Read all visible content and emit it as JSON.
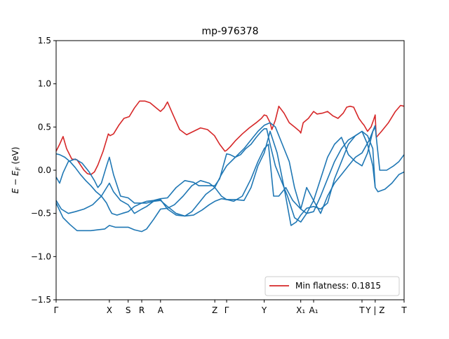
{
  "chart_data": {
    "type": "line",
    "title": "mp-976378",
    "ylabel_main": "E − E",
    "ylabel_sub": "F",
    "ylabel_unit": " (eV)",
    "ylim": [
      -1.5,
      1.5
    ],
    "xlim": [
      0,
      10.0
    ],
    "yticks": [
      {
        "value": 1.5,
        "label": "1.5"
      },
      {
        "value": 1.0,
        "label": "1.0"
      },
      {
        "value": 0.5,
        "label": "0.5"
      },
      {
        "value": 0.0,
        "label": "0.0"
      },
      {
        "value": -0.5,
        "label": "−0.5"
      },
      {
        "value": -1.0,
        "label": "−1.0"
      },
      {
        "value": -1.5,
        "label": "−1.5"
      }
    ],
    "xticks": [
      {
        "value": 0.0,
        "label": "Γ"
      },
      {
        "value": 1.53,
        "label": "X"
      },
      {
        "value": 2.07,
        "label": "S"
      },
      {
        "value": 2.46,
        "label": "R"
      },
      {
        "value": 3.0,
        "label": "A"
      },
      {
        "value": 4.56,
        "label": "Z"
      },
      {
        "value": 4.9,
        "label": "Γ"
      },
      {
        "value": 5.98,
        "label": "Y"
      },
      {
        "value": 7.03,
        "label": "X₁"
      },
      {
        "value": 7.4,
        "label": "A₁"
      },
      {
        "value": 8.79,
        "label": "T"
      },
      {
        "value": 9.17,
        "label": "Y | Z"
      },
      {
        "value": 10.0,
        "label": "T"
      }
    ],
    "legend": {
      "label": "Min flatness: 0.1815",
      "position": "lower-right"
    },
    "series": [
      {
        "color": "#d62728",
        "x": [
          0,
          0.1,
          0.2,
          0.3,
          0.45,
          0.6,
          0.8,
          0.9,
          1.0,
          1.1,
          1.2,
          1.35,
          1.5,
          1.55,
          1.65,
          1.8,
          1.95,
          2.1,
          2.25,
          2.4,
          2.46,
          2.55,
          2.7,
          2.85,
          3.0,
          3.1,
          3.2,
          3.35,
          3.55,
          3.75,
          3.95,
          4.15,
          4.35,
          4.55,
          4.7,
          4.85,
          4.9,
          5.0,
          5.15,
          5.35,
          5.55,
          5.75,
          5.9,
          5.98,
          6.05,
          6.15,
          6.2,
          6.3,
          6.4,
          6.55,
          6.7,
          6.85,
          7.0,
          7.03,
          7.1,
          7.25,
          7.4,
          7.5,
          7.65,
          7.8,
          7.95,
          8.1,
          8.25,
          8.35,
          8.45,
          8.55,
          8.7,
          8.79,
          8.85,
          8.95,
          9.05,
          9.12,
          9.17,
          9.2,
          9.35,
          9.55,
          9.75,
          9.9,
          10.0
        ],
        "y": [
          0.22,
          0.3,
          0.39,
          0.25,
          0.13,
          0.12,
          0.0,
          -0.04,
          -0.05,
          -0.02,
          0.06,
          0.22,
          0.42,
          0.4,
          0.42,
          0.52,
          0.6,
          0.62,
          0.72,
          0.8,
          0.8,
          0.8,
          0.78,
          0.73,
          0.68,
          0.72,
          0.79,
          0.65,
          0.47,
          0.41,
          0.45,
          0.49,
          0.47,
          0.4,
          0.3,
          0.22,
          0.23,
          0.27,
          0.34,
          0.42,
          0.49,
          0.55,
          0.6,
          0.64,
          0.63,
          0.55,
          0.47,
          0.58,
          0.74,
          0.66,
          0.55,
          0.5,
          0.45,
          0.43,
          0.55,
          0.6,
          0.68,
          0.65,
          0.66,
          0.68,
          0.63,
          0.6,
          0.66,
          0.73,
          0.74,
          0.73,
          0.6,
          0.55,
          0.52,
          0.45,
          0.5,
          0.58,
          0.64,
          0.38,
          0.45,
          0.55,
          0.68,
          0.75,
          0.74
        ]
      },
      {
        "color": "#1f77b4",
        "x": [
          0,
          0.1,
          0.25,
          0.4,
          0.55,
          0.7,
          0.85,
          1.0,
          1.15,
          1.3,
          1.45,
          1.53,
          1.6,
          1.75,
          1.9,
          2.07,
          2.25,
          2.46,
          2.6,
          2.8,
          3.0,
          3.2,
          3.45,
          3.7,
          3.95,
          4.1,
          4.3,
          4.56,
          4.7,
          4.9,
          5.0,
          5.15,
          5.3,
          5.45,
          5.6,
          5.75,
          5.9,
          5.98,
          6.05,
          6.15,
          6.3,
          6.45,
          6.65,
          6.85,
          7.03,
          7.2,
          7.4,
          7.6,
          7.8,
          8.0,
          8.2,
          8.4,
          8.6,
          8.79,
          8.95,
          9.1,
          9.17,
          9.3,
          9.5,
          9.7,
          9.85,
          10.0
        ],
        "y": [
          0.19,
          0.18,
          0.15,
          0.1,
          0.03,
          -0.05,
          -0.12,
          -0.18,
          -0.25,
          -0.3,
          -0.38,
          -0.45,
          -0.5,
          -0.52,
          -0.5,
          -0.48,
          -0.42,
          -0.38,
          -0.36,
          -0.35,
          -0.33,
          -0.32,
          -0.2,
          -0.12,
          -0.14,
          -0.18,
          -0.18,
          -0.18,
          -0.1,
          0.19,
          0.18,
          0.15,
          0.18,
          0.25,
          0.3,
          0.38,
          0.45,
          0.48,
          0.48,
          0.3,
          0.05,
          -0.1,
          -0.3,
          -0.55,
          -0.6,
          -0.5,
          -0.35,
          -0.1,
          0.15,
          0.3,
          0.38,
          0.18,
          0.1,
          0.05,
          0.2,
          0.45,
          0.5,
          0.0,
          0.0,
          0.05,
          0.1,
          0.18
        ]
      },
      {
        "color": "#1f77b4",
        "x": [
          0,
          0.1,
          0.2,
          0.35,
          0.55,
          0.75,
          0.95,
          1.1,
          1.2,
          1.3,
          1.45,
          1.53,
          1.65,
          1.85,
          2.07,
          2.25,
          2.46,
          2.6,
          2.8,
          3.0,
          3.2,
          3.45,
          3.7,
          3.95,
          4.2,
          4.4,
          4.56,
          4.75,
          4.9,
          5.1,
          5.35,
          5.6,
          5.8,
          5.98,
          6.1,
          6.25,
          6.4,
          6.6,
          6.8,
          7.03,
          7.2,
          7.4,
          7.6,
          7.8,
          8.0,
          8.2,
          8.4,
          8.6,
          8.79,
          9.0,
          9.17
        ],
        "y": [
          -0.08,
          -0.15,
          -0.03,
          0.1,
          0.13,
          0.08,
          -0.02,
          -0.12,
          -0.2,
          -0.15,
          0.05,
          0.15,
          -0.05,
          -0.3,
          -0.32,
          -0.38,
          -0.38,
          -0.38,
          -0.36,
          -0.35,
          -0.42,
          -0.5,
          -0.53,
          -0.52,
          -0.46,
          -0.4,
          -0.36,
          -0.33,
          -0.34,
          -0.36,
          -0.3,
          -0.1,
          0.1,
          0.25,
          0.3,
          -0.3,
          -0.3,
          -0.2,
          -0.35,
          -0.45,
          -0.2,
          -0.35,
          -0.5,
          -0.3,
          -0.15,
          -0.05,
          0.05,
          0.15,
          0.2,
          0.35,
          0.52
        ]
      },
      {
        "color": "#1f77b4",
        "x": [
          0,
          0.15,
          0.35,
          0.55,
          0.8,
          1.05,
          1.3,
          1.53,
          1.65,
          1.85,
          2.07,
          2.25,
          2.46,
          2.6,
          2.8,
          3.0,
          3.2,
          3.45,
          3.7,
          3.9,
          4.1,
          4.3,
          4.56,
          4.75,
          4.9,
          5.15,
          5.4,
          5.6,
          5.8,
          5.98,
          6.15,
          6.3,
          6.5,
          6.7,
          6.85,
          7.03,
          7.2,
          7.4,
          7.6,
          7.8,
          8.0,
          8.2,
          8.4,
          8.6,
          8.79,
          8.95,
          9.1,
          9.17,
          9.25,
          9.45,
          9.65,
          9.85,
          10.0
        ],
        "y": [
          -0.35,
          -0.45,
          -0.5,
          -0.48,
          -0.45,
          -0.4,
          -0.3,
          -0.15,
          -0.25,
          -0.35,
          -0.4,
          -0.5,
          -0.45,
          -0.42,
          -0.36,
          -0.34,
          -0.45,
          -0.52,
          -0.53,
          -0.48,
          -0.38,
          -0.28,
          -0.2,
          -0.05,
          0.05,
          0.15,
          0.25,
          0.35,
          0.45,
          0.52,
          0.55,
          0.5,
          0.3,
          0.1,
          -0.2,
          -0.45,
          -0.5,
          -0.48,
          -0.3,
          -0.1,
          0.1,
          0.25,
          0.35,
          0.4,
          0.45,
          0.3,
          0.05,
          -0.2,
          -0.25,
          -0.22,
          -0.15,
          -0.05,
          -0.02
        ]
      },
      {
        "color": "#1f77b4",
        "x": [
          0,
          0.2,
          0.4,
          0.6,
          0.8,
          1.0,
          1.2,
          1.4,
          1.53,
          1.7,
          1.9,
          2.07,
          2.25,
          2.46,
          2.6,
          2.8,
          3.0,
          3.2,
          3.4,
          3.65,
          3.9,
          4.15,
          4.4,
          4.56,
          4.75,
          4.9,
          5.15,
          5.4,
          5.6,
          5.8,
          5.98,
          6.15,
          6.35,
          6.55,
          6.75,
          6.9,
          7.03,
          7.2,
          7.4,
          7.6,
          7.8,
          8.0,
          8.2,
          8.4,
          8.6,
          8.79,
          8.95,
          9.1,
          9.17
        ],
        "y": [
          -0.38,
          -0.55,
          -0.63,
          -0.7,
          -0.7,
          -0.7,
          -0.69,
          -0.68,
          -0.64,
          -0.66,
          -0.66,
          -0.66,
          -0.69,
          -0.71,
          -0.68,
          -0.57,
          -0.45,
          -0.44,
          -0.4,
          -0.3,
          -0.18,
          -0.12,
          -0.15,
          -0.2,
          -0.3,
          -0.34,
          -0.34,
          -0.35,
          -0.2,
          0.05,
          0.2,
          0.45,
          0.2,
          -0.2,
          -0.64,
          -0.6,
          -0.52,
          -0.44,
          -0.42,
          -0.45,
          -0.38,
          -0.1,
          0.1,
          0.3,
          0.4,
          0.45,
          0.4,
          0.25,
          -0.2
        ]
      }
    ]
  }
}
